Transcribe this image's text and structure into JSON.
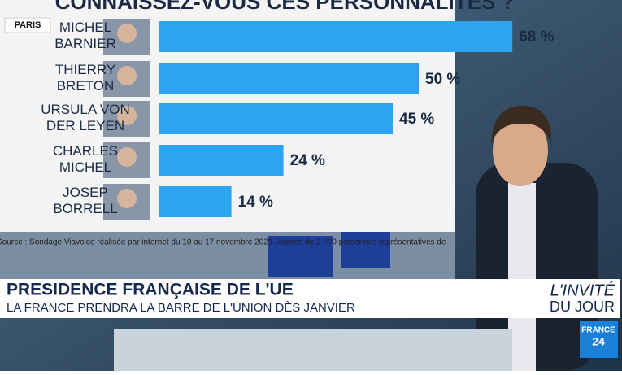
{
  "chart_data": {
    "type": "bar",
    "orientation": "horizontal",
    "title": "CONNAISSEZ-VOUS CES PERSONNALITÉS ?",
    "categories": [
      "MICHEL BARNIER",
      "THIERRY BRETON",
      "URSULA VON DER LEYEN",
      "CHARLES MICHEL",
      "JOSEP BORRELL"
    ],
    "values": [
      68,
      50,
      45,
      24,
      14
    ],
    "value_labels": [
      "68 %",
      "50 %",
      "45 %",
      "24 %",
      "14 %"
    ],
    "color": "#2ea3f2",
    "xlim": [
      0,
      100
    ],
    "source": "Source : Sondage Viavoice réalisée par internet du 10 au 17 novembre 2021. Auprès de 2 000 personnes représentatives de"
  },
  "location": "PARIS",
  "banner": {
    "headline": "PRESIDENCE FRANÇAISE DE L'UE",
    "subline": "LA FRANCE PRENDRA LA BARRE DE L'UNION DÈS JANVIER"
  },
  "show": {
    "line1": "L'INVITÉ",
    "line2": "DU JOUR"
  },
  "logo": {
    "line1": "FRANCE",
    "line2": "24"
  }
}
